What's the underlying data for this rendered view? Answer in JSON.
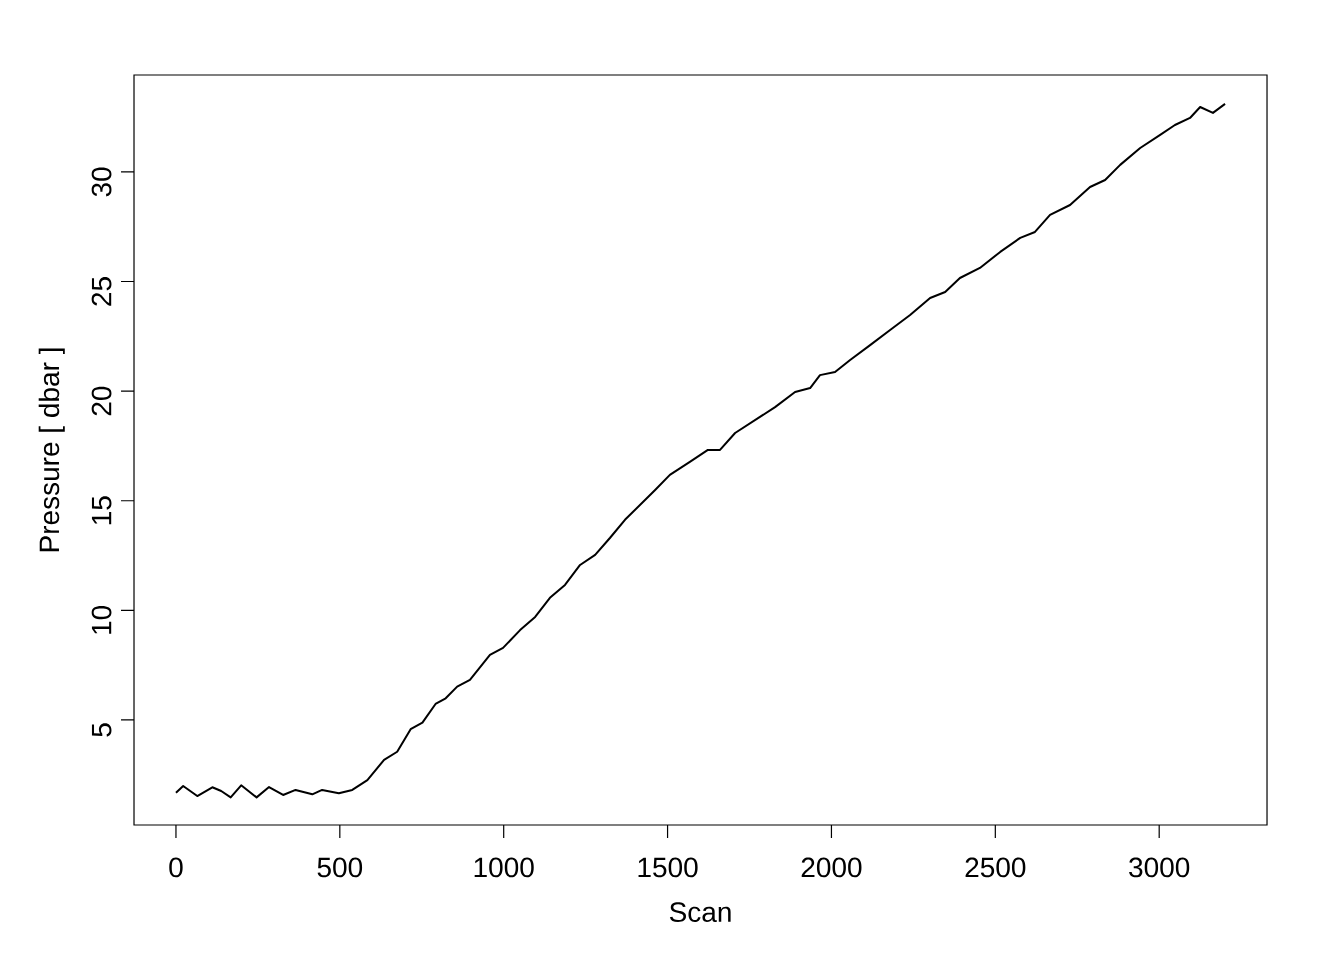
{
  "chart_data": {
    "type": "line",
    "xlabel": "Scan",
    "ylabel": "Pressure [ dbar ]",
    "color": "#000000",
    "x": [
      0,
      22,
      65,
      111,
      138,
      167,
      199,
      246,
      284,
      327,
      365,
      416,
      446,
      497,
      538,
      584,
      635,
      675,
      716,
      752,
      792,
      823,
      858,
      897,
      958,
      998,
      1050,
      1096,
      1141,
      1187,
      1233,
      1279,
      1324,
      1370,
      1416,
      1462,
      1507,
      1568,
      1623,
      1660,
      1706,
      1767,
      1828,
      1889,
      1935,
      1965,
      2011,
      2057,
      2118,
      2179,
      2240,
      2301,
      2347,
      2392,
      2453,
      2515,
      2576,
      2621,
      2667,
      2728,
      2789,
      2835,
      2881,
      2942,
      3003,
      3048,
      3094,
      3125,
      3164,
      3201
    ],
    "values": [
      1.68,
      1.99,
      1.53,
      1.93,
      1.76,
      1.47,
      2.02,
      1.47,
      1.94,
      1.58,
      1.81,
      1.61,
      1.81,
      1.66,
      1.81,
      2.26,
      3.18,
      3.55,
      4.58,
      4.88,
      5.73,
      5.99,
      6.52,
      6.83,
      7.97,
      8.29,
      9.1,
      9.7,
      10.57,
      11.16,
      12.07,
      12.53,
      13.3,
      14.13,
      14.81,
      15.49,
      16.18,
      16.77,
      17.32,
      17.32,
      18.09,
      18.68,
      19.27,
      19.96,
      20.14,
      20.73,
      20.87,
      21.42,
      22.1,
      22.79,
      23.47,
      24.25,
      24.52,
      25.16,
      25.62,
      26.35,
      26.99,
      27.26,
      28.04,
      28.49,
      29.31,
      29.63,
      30.32,
      31.09,
      31.69,
      32.14,
      32.46,
      32.96,
      32.69,
      33.1
    ],
    "xlim": [
      -128,
      3329
    ],
    "ylim": [
      0.21,
      34.42
    ],
    "xticks": [
      0,
      500,
      1000,
      1500,
      2000,
      2500,
      3000
    ],
    "yticks": [
      5,
      10,
      15,
      20,
      25,
      30
    ]
  }
}
